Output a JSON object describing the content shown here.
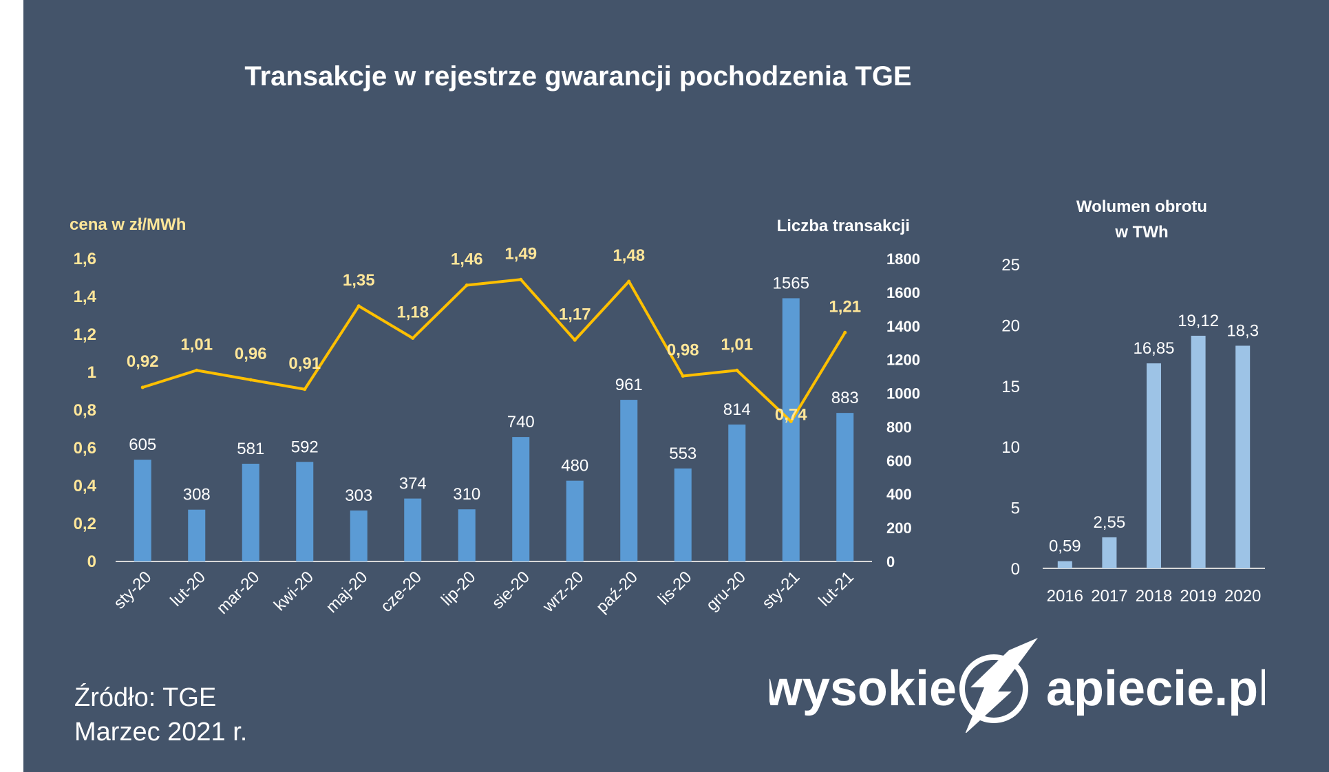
{
  "colors": {
    "background": "#44546a",
    "bar_main": "#5b9bd5",
    "bar_volume": "#9dc3e6",
    "price_line": "#ffc000",
    "price_label": "#ffe699",
    "text": "#ffffff"
  },
  "chart_data": [
    {
      "type": "bar+line",
      "title": "Transakcje w rejestrze gwarancji pochodzenia TGE",
      "categories": [
        "sty-20",
        "lut-20",
        "mar-20",
        "kwi-20",
        "maj-20",
        "cze-20",
        "lip-20",
        "sie-20",
        "wrz-20",
        "paź-20",
        "lis-20",
        "gru-20",
        "sty-21",
        "lut-21"
      ],
      "bar_series": {
        "axis_title": "Liczba transakcji",
        "values": [
          605,
          308,
          581,
          592,
          303,
          374,
          310,
          740,
          480,
          961,
          553,
          814,
          1565,
          883
        ],
        "axis": "right",
        "ylim": [
          0,
          1800
        ],
        "ticks": [
          "0",
          "200",
          "400",
          "600",
          "800",
          "1000",
          "1200",
          "1400",
          "1600",
          "1800"
        ]
      },
      "line_series": {
        "axis_title": "cena w zł/MWh",
        "values": [
          0.92,
          1.01,
          0.96,
          0.91,
          1.35,
          1.18,
          1.46,
          1.49,
          1.17,
          1.48,
          0.98,
          1.01,
          0.74,
          1.21
        ],
        "labels": [
          "0,92",
          "1,01",
          "0,96",
          "0,91",
          "1,35",
          "1,18",
          "1,46",
          "1,49",
          "1,17",
          "1,48",
          "0,98",
          "1,01",
          "0,74",
          "1,21"
        ],
        "axis": "left",
        "ylim": [
          0,
          1.6
        ],
        "ticks": [
          "0",
          "0,2",
          "0,4",
          "0,6",
          "0,8",
          "1",
          "1,2",
          "1,4",
          "1,6"
        ]
      },
      "grid": false
    },
    {
      "type": "bar",
      "title": "Wolumen obrotu w TWh",
      "title_lines": [
        "Wolumen obrotu",
        "w TWh"
      ],
      "categories": [
        "2016",
        "2017",
        "2018",
        "2019",
        "2020"
      ],
      "values": [
        0.59,
        2.55,
        16.85,
        19.12,
        18.3
      ],
      "labels": [
        "0,59",
        "2,55",
        "16,85",
        "19,12",
        "18,3"
      ],
      "ylim": [
        0,
        25
      ],
      "ticks": [
        "0",
        "5",
        "10",
        "15",
        "20",
        "25"
      ],
      "grid": false
    }
  ],
  "footer": {
    "source": "Źródło: TGE",
    "date": "Marzec 2021 r."
  },
  "logo": {
    "left_text": "wysokie",
    "right_text": "apiecie.pl"
  }
}
